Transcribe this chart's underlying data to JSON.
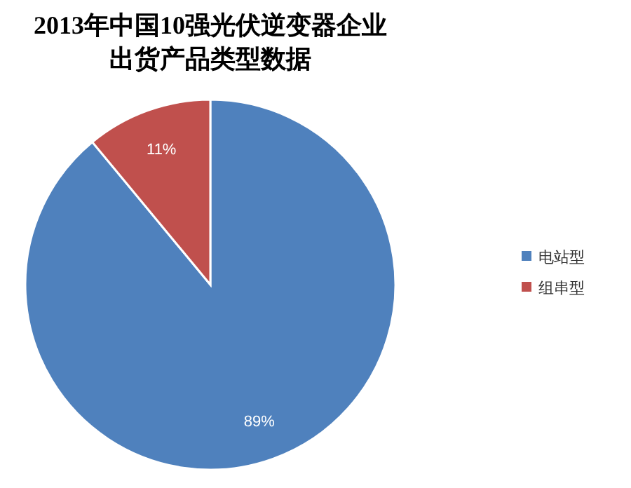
{
  "chart_data": {
    "type": "pie",
    "title": "2013年中国10强光伏逆变器企业",
    "subtitle": "出货产品类型数据",
    "categories": [
      "电站型",
      "组串型"
    ],
    "values": [
      89,
      11
    ],
    "colors": [
      "#4f81bd",
      "#c0504d"
    ],
    "value_labels": [
      "89%",
      "11%"
    ],
    "legend": "right"
  }
}
